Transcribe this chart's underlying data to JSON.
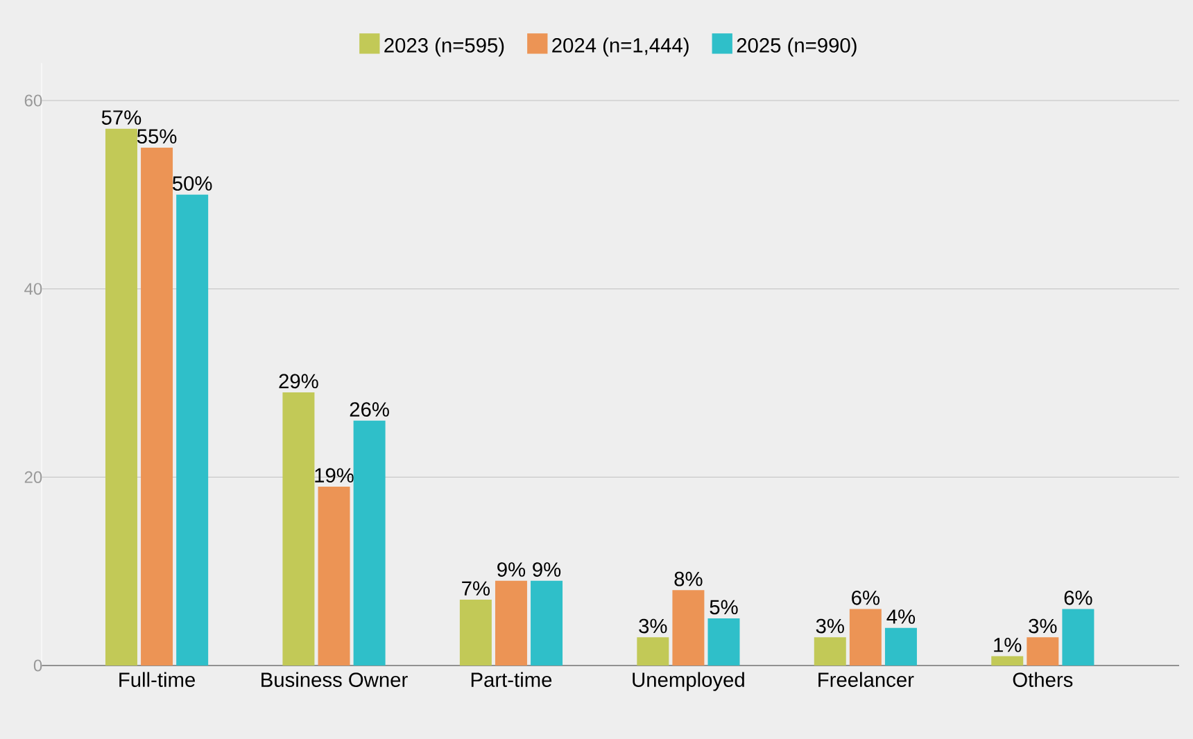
{
  "chart_data": {
    "type": "bar",
    "categories": [
      "Full-time",
      "Business Owner",
      "Part-time",
      "Unemployed",
      "Freelancer",
      "Others"
    ],
    "series": [
      {
        "name": "2023 (n=595)",
        "color": "#c2c957",
        "values": [
          57,
          29,
          7,
          3,
          3,
          1
        ],
        "value_labels": [
          "57%",
          "29%",
          "7%",
          "3%",
          "3%",
          "1%"
        ]
      },
      {
        "name": "2024 (n=1,444)",
        "color": "#ec9455",
        "values": [
          55,
          19,
          9,
          8,
          6,
          3
        ],
        "value_labels": [
          "55%",
          "19%",
          "9%",
          "8%",
          "6%",
          "3%"
        ]
      },
      {
        "name": "2025 (n=990)",
        "color": "#2fbfc9",
        "values": [
          50,
          26,
          9,
          5,
          4,
          6
        ],
        "value_labels": [
          "50%",
          "26%",
          "9%",
          "5%",
          "4%",
          "6%"
        ]
      }
    ],
    "ylim": [
      0,
      64
    ],
    "yticks": [
      0,
      20,
      40,
      60
    ],
    "grid": "y",
    "legend": "top"
  }
}
